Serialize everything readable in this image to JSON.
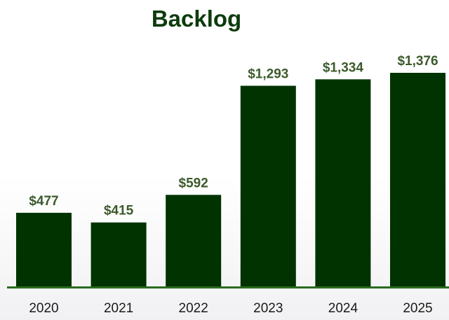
{
  "chart_data": {
    "type": "bar",
    "title": "Backlog",
    "categories": [
      "2020",
      "2021",
      "2022",
      "2023",
      "2024",
      "2025"
    ],
    "values": [
      477,
      415,
      592,
      1293,
      1334,
      1376
    ],
    "data_labels": [
      "$477",
      "$415",
      "$592",
      "$1,293",
      "$1,334",
      "$1,376"
    ],
    "xlabel": "",
    "ylabel": "",
    "ylim": [
      0,
      1376
    ],
    "grid": false,
    "legend": "none",
    "colors": {
      "bar": "#003300",
      "baseline": "#2a6b1f",
      "title": "#0d3b0d",
      "data_label": "#3c5a2b",
      "tick_label": "#1a1a1a"
    }
  }
}
